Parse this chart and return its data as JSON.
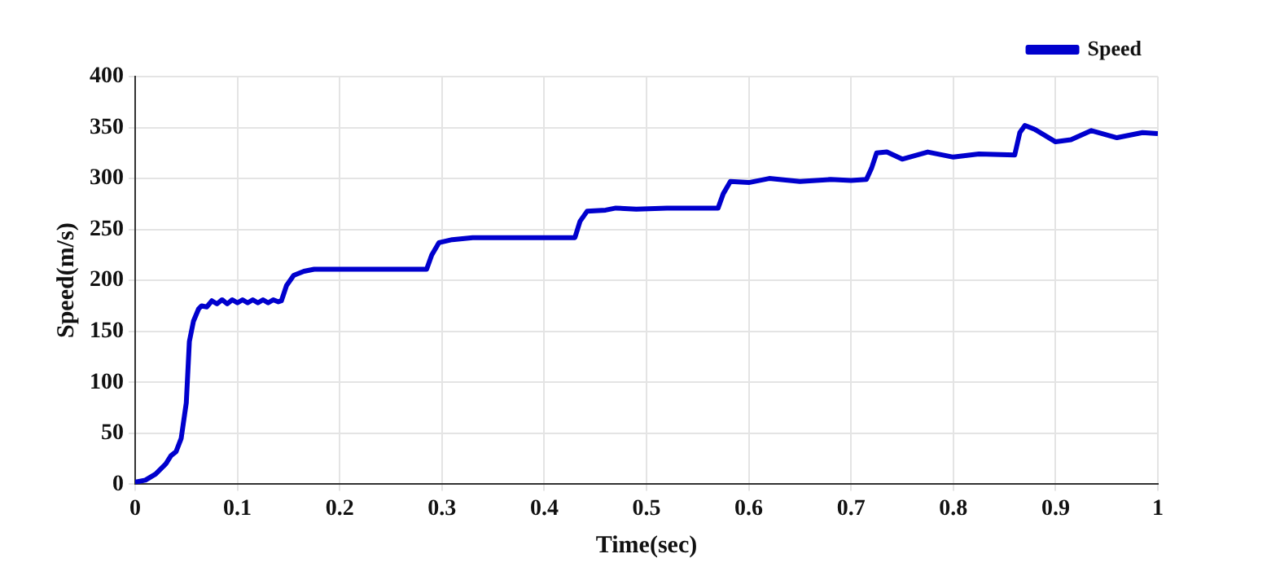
{
  "chart_data": {
    "type": "line",
    "xlabel": "Time(sec)",
    "ylabel": "Speed(m/s)",
    "xlim": [
      0,
      1
    ],
    "xticks": [
      0,
      0.1,
      0.2,
      0.3,
      0.4,
      0.5,
      0.6,
      0.7,
      0.8,
      0.9,
      1
    ],
    "ylim": [
      0,
      400
    ],
    "yticks": [
      0,
      50,
      100,
      150,
      200,
      250,
      300,
      350,
      400
    ],
    "grid": true,
    "legend": "top right",
    "series": [
      {
        "name": "Speed",
        "color": "#0000cd",
        "x": [
          0,
          0.01,
          0.02,
          0.03,
          0.035,
          0.04,
          0.045,
          0.05,
          0.053,
          0.057,
          0.062,
          0.065,
          0.07,
          0.075,
          0.08,
          0.085,
          0.09,
          0.095,
          0.1,
          0.105,
          0.11,
          0.115,
          0.12,
          0.125,
          0.13,
          0.135,
          0.14,
          0.143,
          0.148,
          0.155,
          0.165,
          0.175,
          0.2,
          0.25,
          0.285,
          0.29,
          0.297,
          0.31,
          0.33,
          0.36,
          0.4,
          0.43,
          0.435,
          0.442,
          0.46,
          0.47,
          0.49,
          0.52,
          0.57,
          0.575,
          0.582,
          0.6,
          0.62,
          0.65,
          0.68,
          0.7,
          0.715,
          0.72,
          0.725,
          0.735,
          0.75,
          0.775,
          0.8,
          0.825,
          0.86,
          0.865,
          0.87,
          0.88,
          0.9,
          0.915,
          0.935,
          0.96,
          0.985,
          1
        ],
        "values": [
          2,
          4,
          10,
          20,
          28,
          32,
          45,
          80,
          140,
          160,
          172,
          175,
          174,
          180,
          177,
          181,
          177,
          181,
          178,
          181,
          178,
          181,
          178,
          181,
          178,
          181,
          179,
          180,
          195,
          205,
          209,
          211,
          211,
          211,
          211,
          225,
          237,
          240,
          242,
          242,
          242,
          242,
          258,
          268,
          269,
          271,
          270,
          271,
          271,
          285,
          297,
          296,
          300,
          297,
          299,
          298,
          299,
          310,
          325,
          326,
          319,
          326,
          321,
          324,
          323,
          345,
          352,
          348,
          336,
          338,
          347,
          340,
          345,
          344
        ]
      }
    ]
  }
}
